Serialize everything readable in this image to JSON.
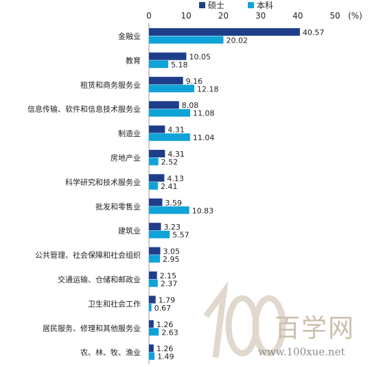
{
  "chart_data": {
    "type": "bar",
    "orientation": "horizontal",
    "unit_label": "(%)",
    "xlim": [
      0,
      50
    ],
    "x_ticks": [
      "0",
      "10",
      "20",
      "30",
      "40",
      "50"
    ],
    "grid": false,
    "legend_position": "top",
    "categories": [
      "金融业",
      "教育",
      "租赁和商务服务业",
      "信息传输、软件和信息技术服务业",
      "制造业",
      "房地产业",
      "科学研究和技术服务业",
      "批发和零售业",
      "建筑业",
      "公共管理、社会保障和社会组织",
      "交通运输、仓储和邮政业",
      "卫生和社会工作",
      "居民服务、修理和其他服务业",
      "农、林、牧、渔业"
    ],
    "series": [
      {
        "name": "硕士",
        "color": "#1f3e8a",
        "values": [
          40.57,
          10.05,
          9.16,
          8.08,
          4.31,
          4.31,
          4.13,
          3.59,
          3.23,
          3.05,
          2.15,
          1.79,
          1.26,
          1.26
        ],
        "labels": [
          "40.57",
          "10.05",
          "9.16",
          "8.08",
          "4.31",
          "4.31",
          "4.13",
          "3.59",
          "3.23",
          "3.05",
          "2.15",
          "1.79",
          "1.26",
          "1.26"
        ]
      },
      {
        "name": "本科",
        "color": "#0fa3d8",
        "values": [
          20.02,
          5.18,
          12.18,
          11.08,
          11.04,
          2.52,
          2.41,
          10.83,
          5.57,
          2.95,
          2.37,
          0.67,
          2.63,
          1.49
        ],
        "labels": [
          "20.02",
          "5.18",
          "12.18",
          "11.08",
          "11.04",
          "2.52",
          "2.41",
          "10.83",
          "5.57",
          "2.95",
          "2.37",
          "0.67",
          "2.63",
          "1.49"
        ]
      }
    ]
  },
  "watermark": {
    "logo_text": "100",
    "brand": "百学网",
    "url": "www.100xue.net"
  }
}
